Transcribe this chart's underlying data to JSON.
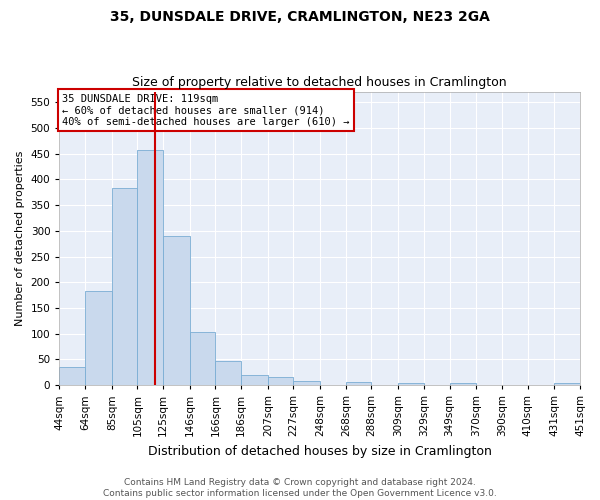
{
  "title": "35, DUNSDALE DRIVE, CRAMLINGTON, NE23 2GA",
  "subtitle": "Size of property relative to detached houses in Cramlington",
  "xlabel": "Distribution of detached houses by size in Cramlington",
  "ylabel": "Number of detached properties",
  "footer_line1": "Contains HM Land Registry data © Crown copyright and database right 2024.",
  "footer_line2": "Contains public sector information licensed under the Open Government Licence v3.0.",
  "annotation_line1": "35 DUNSDALE DRIVE: 119sqm",
  "annotation_line2": "← 60% of detached houses are smaller (914)",
  "annotation_line3": "40% of semi-detached houses are larger (610) →",
  "bar_edges": [
    44,
    64,
    85,
    105,
    125,
    146,
    166,
    186,
    207,
    227,
    248,
    268,
    288,
    309,
    329,
    349,
    370,
    390,
    410,
    431,
    451
  ],
  "bar_heights": [
    35,
    183,
    384,
    457,
    289,
    103,
    47,
    20,
    15,
    8,
    0,
    5,
    0,
    4,
    0,
    3,
    0,
    0,
    0,
    3
  ],
  "bar_color": "#c9d9ed",
  "bar_edgecolor": "#7aadd4",
  "vline_x": 119,
  "vline_color": "#cc0000",
  "ylim": [
    0,
    570
  ],
  "xlim": [
    44,
    451
  ],
  "yticks": [
    0,
    50,
    100,
    150,
    200,
    250,
    300,
    350,
    400,
    450,
    500,
    550
  ],
  "plot_bg_color": "#e8eef8",
  "fig_bg_color": "#ffffff",
  "annotation_box_color": "#ffffff",
  "annotation_box_edge": "#cc0000",
  "title_fontsize": 10,
  "subtitle_fontsize": 9,
  "xlabel_fontsize": 9,
  "ylabel_fontsize": 8,
  "tick_fontsize": 7.5,
  "annotation_fontsize": 7.5,
  "footer_fontsize": 6.5
}
